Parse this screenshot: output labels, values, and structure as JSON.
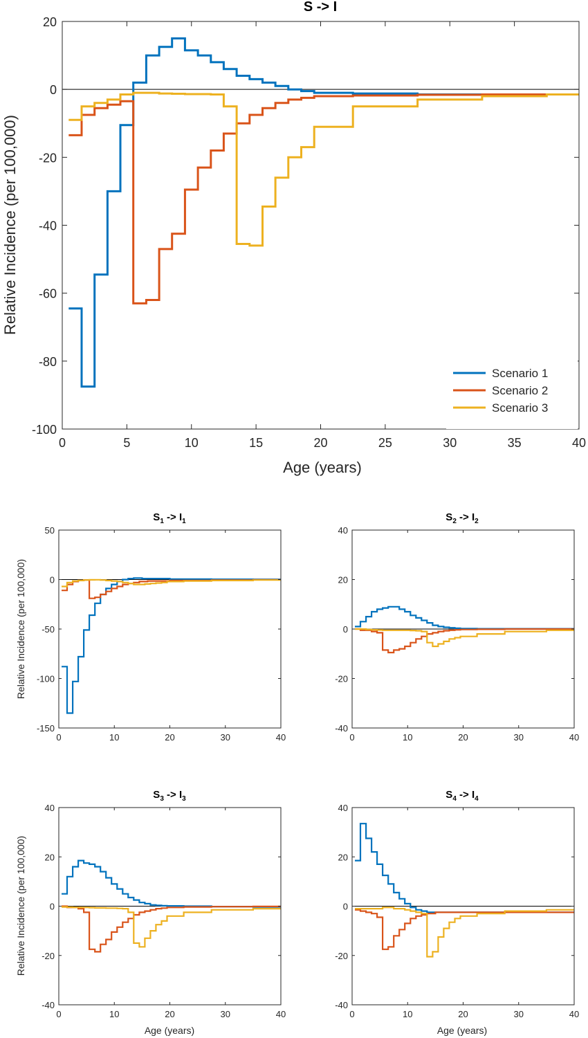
{
  "colors": {
    "scenario1": "#0072BD",
    "scenario2": "#D95319",
    "scenario3": "#EDB120",
    "zero_line": "#000000",
    "axes": "#262626"
  },
  "chart_data": [
    {
      "id": "main",
      "type": "line",
      "step": true,
      "title": "S -> I",
      "xlabel": "Age (years)",
      "ylabel": "Relative Incidence (per 100,000)",
      "xlim": [
        0,
        40
      ],
      "ylim": [
        -100,
        20
      ],
      "xticks": [
        0,
        5,
        10,
        15,
        20,
        25,
        30,
        35,
        40
      ],
      "yticks": [
        -100,
        -80,
        -60,
        -40,
        -20,
        0,
        20
      ],
      "legend": "bottom-right",
      "legend_entries": [
        "Scenario 1",
        "Scenario 2",
        "Scenario 3"
      ],
      "zero_line": true,
      "series": [
        {
          "name": "Scenario 1",
          "color": "#0072BD",
          "x": [
            0.5,
            1.5,
            2.5,
            3.5,
            4.5,
            5.5,
            6.5,
            7.5,
            8.5,
            9.5,
            10.5,
            11.5,
            12.5,
            13.5,
            14.5,
            15.5,
            16.5,
            17.5,
            18.5,
            19.5,
            22.5,
            27.5
          ],
          "y": [
            -64.5,
            -87.5,
            -54.5,
            -30,
            -10.5,
            2,
            10,
            12.5,
            15,
            11.5,
            10,
            8,
            6,
            4,
            3,
            2,
            1,
            0,
            -0.5,
            -1,
            -1.2,
            -1.5
          ]
        },
        {
          "name": "Scenario 2",
          "color": "#D95319",
          "x": [
            0.5,
            1.5,
            2.5,
            3.5,
            4.5,
            5.5,
            6.5,
            7.5,
            8.5,
            9.5,
            10.5,
            11.5,
            12.5,
            13.5,
            14.5,
            15.5,
            16.5,
            17.5,
            18.5,
            19.5,
            22.5,
            27.5,
            32.5
          ],
          "y": [
            -13.5,
            -7.5,
            -5.5,
            -4.5,
            -3.5,
            -63,
            -62,
            -47,
            -42.5,
            -29.5,
            -23,
            -18,
            -13,
            -10,
            -7.5,
            -5.5,
            -4,
            -3,
            -2.5,
            -2,
            -1.8,
            -1.6,
            -1.5
          ]
        },
        {
          "name": "Scenario 3",
          "color": "#EDB120",
          "x": [
            0.5,
            1.5,
            2.5,
            3.5,
            4.5,
            5.5,
            6.5,
            7.5,
            8.5,
            9.5,
            10.5,
            11.5,
            12.5,
            13.5,
            14.5,
            15.5,
            16.5,
            17.5,
            18.5,
            19.5,
            22.5,
            27.5,
            32.5,
            37.5
          ],
          "y": [
            -9,
            -5,
            -4,
            -3,
            -1.5,
            -1,
            -1,
            -1.2,
            -1.3,
            -1.4,
            -1.4,
            -1.5,
            -5,
            -45.5,
            -46,
            -34.5,
            -26,
            -20,
            -17,
            -11,
            -5,
            -3,
            -2,
            -1.5
          ]
        }
      ]
    },
    {
      "id": "s1",
      "type": "line",
      "step": true,
      "title_base": "S",
      "title_sub1": "1",
      "title_mid": " -> I",
      "title_sub2": "1",
      "xlabel": "",
      "ylabel": "Relative Incidence (per 100,000)",
      "xlim": [
        0,
        40
      ],
      "ylim": [
        -150,
        50
      ],
      "xticks": [
        0,
        10,
        20,
        30,
        40
      ],
      "yticks": [
        -150,
        -100,
        -50,
        0,
        50
      ],
      "zero_line": true,
      "series": [
        {
          "color": "#0072BD",
          "x": [
            0.5,
            1.5,
            2.5,
            3.5,
            4.5,
            5.5,
            6.5,
            7.5,
            8.5,
            9.5,
            10.5,
            11.5,
            12.5,
            13.5,
            15,
            20,
            27.5,
            35
          ],
          "y": [
            -88,
            -135,
            -103,
            -78,
            -51,
            -36,
            -24,
            -15,
            -9,
            -5,
            -2,
            0,
            1,
            1.5,
            1,
            0.5,
            0.3,
            0.2
          ]
        },
        {
          "color": "#D95319",
          "x": [
            0.5,
            1.5,
            2.5,
            3.5,
            4.5,
            5.5,
            6.5,
            7.5,
            8.5,
            9.5,
            10.5,
            11.5,
            12.5,
            13.5,
            14.5,
            16,
            20,
            27.5,
            35
          ],
          "y": [
            -11,
            -5,
            -2,
            -1,
            -0.5,
            -19,
            -18,
            -15,
            -12,
            -9,
            -7,
            -5,
            -4,
            -3,
            -2,
            -1.5,
            -1,
            -0.5,
            -0.3
          ]
        },
        {
          "color": "#EDB120",
          "x": [
            0.5,
            1.5,
            2.5,
            3.5,
            4.5,
            5.5,
            6.5,
            7.5,
            8.5,
            9.5,
            10.5,
            11.5,
            12.5,
            13.5,
            14.5,
            15.5,
            16.5,
            17.5,
            18.5,
            19.5,
            22.5,
            27.5,
            35
          ],
          "y": [
            -7,
            -3,
            -1.5,
            -1,
            -0.5,
            -0.3,
            -0.2,
            -0.5,
            -1,
            -1.5,
            -2,
            -3,
            -4,
            -5,
            -5,
            -4.5,
            -4,
            -3.5,
            -3,
            -2,
            -1.5,
            -1,
            -0.5
          ]
        }
      ]
    },
    {
      "id": "s2",
      "type": "line",
      "step": true,
      "title_base": "S",
      "title_sub1": "2",
      "title_mid": " -> I",
      "title_sub2": "2",
      "xlabel": "",
      "ylabel": "",
      "xlim": [
        0,
        40
      ],
      "ylim": [
        -40,
        40
      ],
      "xticks": [
        0,
        10,
        20,
        30,
        40
      ],
      "yticks": [
        -40,
        -20,
        0,
        20,
        40
      ],
      "zero_line": true,
      "series": [
        {
          "color": "#0072BD",
          "x": [
            0.5,
            1.5,
            2.5,
            3.5,
            4.5,
            5.5,
            6.5,
            7.5,
            8.5,
            9.5,
            10.5,
            11.5,
            12.5,
            13.5,
            14.5,
            15.5,
            16.5,
            17.5,
            18.5,
            19.5,
            22.5
          ],
          "y": [
            1,
            3,
            5,
            7,
            8,
            8.5,
            9,
            9,
            8,
            7,
            5.5,
            4.5,
            3.5,
            2.5,
            1.5,
            1,
            0.7,
            0.5,
            0.3,
            0.2,
            0.1
          ]
        },
        {
          "color": "#D95319",
          "x": [
            0.5,
            1.5,
            2.5,
            3.5,
            4.5,
            5.5,
            6.5,
            7.5,
            8.5,
            9.5,
            10.5,
            11.5,
            12.5,
            13.5,
            14.5,
            15.5,
            16.5,
            17.5,
            18.5,
            19.5,
            22.5,
            27.5,
            35
          ],
          "y": [
            0,
            -0.5,
            -0.5,
            -1,
            -1.5,
            -8.5,
            -9.5,
            -8.5,
            -8,
            -7,
            -5.5,
            -4,
            -3,
            -2,
            -1.5,
            -1,
            -0.7,
            -0.5,
            -0.3,
            -0.2,
            -0.1,
            0,
            0
          ]
        },
        {
          "color": "#EDB120",
          "x": [
            0.5,
            1.5,
            2.5,
            3.5,
            4.5,
            5.5,
            6.5,
            7.5,
            8.5,
            9.5,
            10.5,
            11.5,
            12.5,
            13.5,
            14.5,
            15.5,
            16.5,
            17.5,
            18.5,
            19.5,
            22.5,
            27.5,
            35
          ],
          "y": [
            0,
            0,
            -0.2,
            -0.3,
            -0.4,
            -0.5,
            -0.5,
            -0.5,
            -0.5,
            -0.5,
            -0.6,
            -0.7,
            -1,
            -5.5,
            -7,
            -6,
            -5,
            -4,
            -3.5,
            -3,
            -2,
            -1,
            -0.5
          ]
        }
      ]
    },
    {
      "id": "s3",
      "type": "line",
      "step": true,
      "title_base": "S",
      "title_sub1": "3",
      "title_mid": " -> I",
      "title_sub2": "3",
      "xlabel": "Age (years)",
      "ylabel": "Relative Incidence (per 100,000)",
      "xlim": [
        0,
        40
      ],
      "ylim": [
        -40,
        40
      ],
      "xticks": [
        0,
        10,
        20,
        30,
        40
      ],
      "yticks": [
        -40,
        -20,
        0,
        20,
        40
      ],
      "zero_line": true,
      "series": [
        {
          "color": "#0072BD",
          "x": [
            0.5,
            1.5,
            2.5,
            3.5,
            4.5,
            5.5,
            6.5,
            7.5,
            8.5,
            9.5,
            10.5,
            11.5,
            12.5,
            13.5,
            14.5,
            15.5,
            16.5,
            17.5,
            18.5,
            19.5,
            22.5,
            27.5,
            35
          ],
          "y": [
            5,
            12,
            16,
            18.5,
            17.5,
            17,
            16,
            14,
            11.5,
            9,
            7,
            5,
            3.5,
            2.5,
            1.5,
            1,
            0.5,
            0.3,
            0.2,
            0.1,
            0,
            -0.2,
            -0.3
          ]
        },
        {
          "color": "#D95319",
          "x": [
            0.5,
            1.5,
            2.5,
            3.5,
            4.5,
            5.5,
            6.5,
            7.5,
            8.5,
            9.5,
            10.5,
            11.5,
            12.5,
            13.5,
            14.5,
            15.5,
            16.5,
            17.5,
            18.5,
            19.5,
            22.5,
            27.5,
            35
          ],
          "y": [
            0,
            -0.5,
            -0.5,
            -1,
            -2.5,
            -17.5,
            -18.5,
            -15.5,
            -13.5,
            -10.5,
            -8.5,
            -6.5,
            -5,
            -3.5,
            -2.5,
            -2,
            -1.5,
            -1,
            -0.8,
            -0.5,
            -0.3,
            -0.2,
            -0.1
          ]
        },
        {
          "color": "#EDB120",
          "x": [
            0.5,
            1.5,
            2.5,
            3.5,
            4.5,
            5.5,
            6.5,
            7.5,
            8.5,
            9.5,
            10.5,
            11.5,
            12.5,
            13.5,
            14.5,
            15.5,
            16.5,
            17.5,
            18.5,
            19.5,
            22.5,
            27.5,
            35
          ],
          "y": [
            -0.3,
            -0.4,
            -0.5,
            -0.5,
            -0.5,
            -0.6,
            -0.7,
            -0.7,
            -0.8,
            -0.8,
            -0.9,
            -1,
            -2.5,
            -15,
            -16.5,
            -13,
            -10,
            -7.5,
            -6,
            -4,
            -2.5,
            -1.5,
            -1
          ]
        }
      ]
    },
    {
      "id": "s4",
      "type": "line",
      "step": true,
      "title_base": "S",
      "title_sub1": "4",
      "title_mid": " -> I",
      "title_sub2": "4",
      "xlabel": "Age (years)",
      "ylabel": "",
      "xlim": [
        0,
        40
      ],
      "ylim": [
        -40,
        40
      ],
      "xticks": [
        0,
        10,
        20,
        30,
        40
      ],
      "yticks": [
        -40,
        -20,
        0,
        20,
        40
      ],
      "zero_line": true,
      "series": [
        {
          "color": "#0072BD",
          "x": [
            0.5,
            1.5,
            2.5,
            3.5,
            4.5,
            5.5,
            6.5,
            7.5,
            8.5,
            9.5,
            10.5,
            11.5,
            12.5,
            13.5,
            15,
            20,
            27.5,
            35
          ],
          "y": [
            18.5,
            33.5,
            27.5,
            22,
            17,
            12.5,
            9,
            5.5,
            3,
            1,
            -0.5,
            -1.5,
            -2,
            -2.5,
            -2.5,
            -2.5,
            -2.5,
            -2.5
          ]
        },
        {
          "color": "#D95319",
          "x": [
            0.5,
            1.5,
            2.5,
            3.5,
            4.5,
            5.5,
            6.5,
            7.5,
            8.5,
            9.5,
            10.5,
            11.5,
            12.5,
            13.5,
            15,
            20,
            27.5,
            35
          ],
          "y": [
            -1.5,
            -2,
            -2.5,
            -3,
            -4.5,
            -17.5,
            -16.5,
            -12,
            -9.5,
            -7,
            -5,
            -4,
            -3.5,
            -3,
            -2.5,
            -2.5,
            -2.5,
            -2.5
          ]
        },
        {
          "color": "#EDB120",
          "x": [
            0.5,
            1.5,
            2.5,
            3.5,
            4.5,
            5.5,
            6.5,
            7.5,
            8.5,
            9.5,
            10.5,
            11.5,
            12.5,
            13.5,
            14.5,
            15.5,
            16.5,
            17.5,
            18.5,
            19.5,
            22.5,
            27.5,
            35
          ],
          "y": [
            -1,
            -1,
            -1,
            -1,
            -1,
            -0.5,
            -0.5,
            -1,
            -1,
            -1.5,
            -2,
            -2.5,
            -3,
            -20.5,
            -18.5,
            -12.5,
            -9,
            -6.5,
            -5,
            -4,
            -3,
            -2,
            -1.5
          ]
        }
      ]
    }
  ]
}
